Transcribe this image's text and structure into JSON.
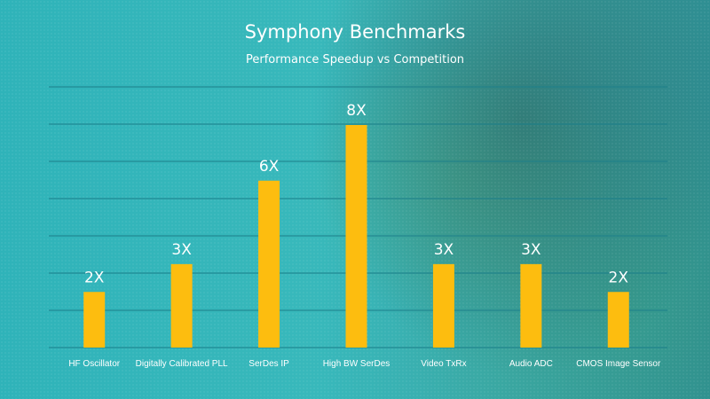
{
  "chart_data": {
    "type": "bar",
    "title": "Symphony Benchmarks",
    "subtitle": "Performance Speedup vs Competition",
    "categories": [
      "HF Oscillator",
      "Digitally Calibrated PLL",
      "SerDes IP",
      "High BW SerDes",
      "Video TxRx",
      "Audio ADC",
      "CMOS Image Sensor"
    ],
    "values": [
      2,
      3,
      6,
      8,
      3,
      3,
      2
    ],
    "data_labels": [
      "2X",
      "3X",
      "6X",
      "8X",
      "3X",
      "3X",
      "2X"
    ],
    "xlabel": "",
    "ylabel": "",
    "grid": true,
    "colors": {
      "bar": "#fdbd0f",
      "grid": "#1c7f8a",
      "text": "#ffffff"
    }
  }
}
